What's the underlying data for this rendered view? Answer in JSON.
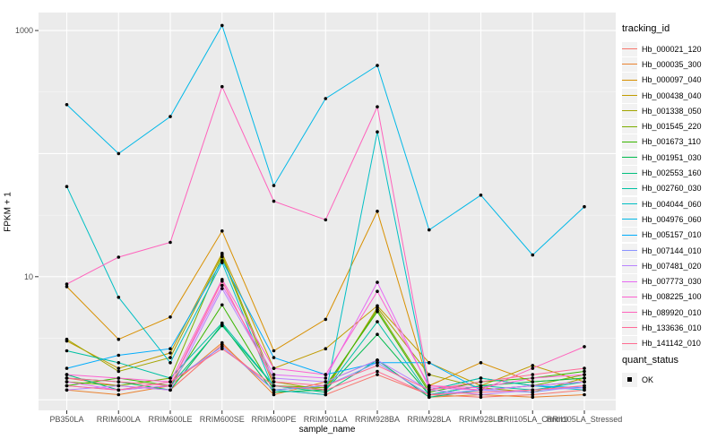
{
  "figure": {
    "background": "#FFFFFF",
    "panel_background": "#EBEBEB",
    "grid_color": "#FFFFFF",
    "tick_color": "#333333",
    "tick_label_color": "#4D4D4D",
    "point_color": "#000000"
  },
  "chart_data": {
    "type": "line",
    "title": "",
    "xlabel": "sample_name",
    "ylabel": "FPKM + 1",
    "y_scale": "log10",
    "ylim": [
      0.82,
      1400
    ],
    "grid": true,
    "legend_position": "right",
    "y_ticks": [
      {
        "label": "1000",
        "value": 1000
      },
      {
        "label": "10",
        "value": 10
      }
    ],
    "y_minor_breaks": [
      3.162,
      31.62,
      316.2
    ],
    "categories": [
      "PB350LA",
      "RRIM600LA",
      "RRIM600LE",
      "RRIM600SE",
      "RRIM600PE",
      "RRIM901LA",
      "RRIM928BA",
      "RRIM928LA",
      "RRIM928LB",
      "RRII105LA_Control",
      "RRII105LA_Stressed"
    ],
    "series": [
      {
        "tracking_id": "Hb_000021_120",
        "color": "#F8766D",
        "values": [
          1.5,
          1.3,
          1.2,
          2.8,
          1.2,
          1.1,
          1.6,
          1.1,
          1.05,
          1.1,
          1.2
        ]
      },
      {
        "tracking_id": "Hb_000035_300",
        "color": "#EA8331",
        "values": [
          1.2,
          1.1,
          1.3,
          2.9,
          1.1,
          1.4,
          2.1,
          1.05,
          1.1,
          1.05,
          1.1
        ]
      },
      {
        "tracking_id": "Hb_000097_040",
        "color": "#D89000",
        "values": [
          8.3,
          3.1,
          4.7,
          23.5,
          2.5,
          4.5,
          34,
          1.3,
          2.0,
          1.4,
          1.5
        ]
      },
      {
        "tracking_id": "Hb_000438_040",
        "color": "#C09B00",
        "values": [
          3.0,
          1.8,
          2.4,
          15.5,
          1.8,
          2.6,
          5.8,
          2.0,
          1.3,
          1.9,
          1.4
        ]
      },
      {
        "tracking_id": "Hb_001338_050",
        "color": "#A3A500",
        "values": [
          3.1,
          1.7,
          2.2,
          15.0,
          1.4,
          1.2,
          5.6,
          1.6,
          1.25,
          1.15,
          1.5
        ]
      },
      {
        "tracking_id": "Hb_001545_220",
        "color": "#7CAE00",
        "values": [
          1.4,
          1.3,
          1.5,
          14.5,
          1.3,
          1.25,
          5.4,
          1.2,
          1.5,
          1.3,
          1.6
        ]
      },
      {
        "tracking_id": "Hb_001673_110",
        "color": "#39B600",
        "values": [
          1.3,
          1.5,
          1.3,
          5.9,
          1.2,
          1.3,
          5.2,
          1.15,
          1.4,
          1.5,
          1.7
        ]
      },
      {
        "tracking_id": "Hb_001951_030",
        "color": "#00BB4E",
        "values": [
          1.5,
          1.4,
          1.2,
          4.1,
          1.15,
          1.2,
          3.4,
          1.1,
          1.3,
          1.4,
          1.5
        ]
      },
      {
        "tracking_id": "Hb_002553_160",
        "color": "#00BF7D",
        "values": [
          1.6,
          1.2,
          1.3,
          4.0,
          1.3,
          1.15,
          2.1,
          1.05,
          1.2,
          1.3,
          1.4
        ]
      },
      {
        "tracking_id": "Hb_002760_030",
        "color": "#00C1A3",
        "values": [
          2.5,
          2.0,
          1.5,
          4.2,
          1.3,
          1.2,
          4.3,
          1.1,
          1.3,
          1.2,
          1.4
        ]
      },
      {
        "tracking_id": "Hb_004044_060",
        "color": "#00BFC4",
        "values": [
          54,
          6.8,
          2.0,
          13,
          1.2,
          1.1,
          150,
          1.2,
          1.5,
          1.3,
          1.2
        ]
      },
      {
        "tracking_id": "Hb_004976_060",
        "color": "#00B8E7",
        "values": [
          250,
          100,
          200,
          1100,
          55,
          280,
          520,
          24,
          46,
          15,
          37
        ]
      },
      {
        "tracking_id": "Hb_005157_010",
        "color": "#00ACFC",
        "values": [
          1.8,
          2.3,
          2.6,
          13.5,
          2.2,
          1.6,
          2.0,
          2.0,
          1.2,
          1.3,
          1.25
        ]
      },
      {
        "tracking_id": "Hb_007144_010",
        "color": "#8B93FF",
        "values": [
          1.3,
          1.2,
          1.4,
          2.7,
          1.2,
          1.3,
          2.0,
          1.1,
          1.2,
          1.15,
          1.3
        ]
      },
      {
        "tracking_id": "Hb_007481_020",
        "color": "#B983FF",
        "values": [
          1.2,
          1.3,
          1.2,
          8.0,
          1.5,
          1.4,
          2.1,
          1.2,
          1.1,
          1.2,
          1.25
        ]
      },
      {
        "tracking_id": "Hb_007773_030",
        "color": "#E76BF3",
        "values": [
          1.4,
          1.2,
          1.3,
          8.5,
          1.6,
          1.5,
          9.0,
          1.25,
          1.2,
          1.3,
          1.4
        ]
      },
      {
        "tracking_id": "Hb_008225_100",
        "color": "#FD61D1",
        "values": [
          1.6,
          1.5,
          1.4,
          9.5,
          1.8,
          1.6,
          7.6,
          1.3,
          1.25,
          1.5,
          1.6
        ]
      },
      {
        "tracking_id": "Hb_089920_010",
        "color": "#FF62BC",
        "values": [
          8.7,
          14.4,
          19,
          350,
          41,
          29,
          240,
          1.3,
          1.2,
          1.8,
          2.7
        ]
      },
      {
        "tracking_id": "Hb_133636_010",
        "color": "#FF6A98",
        "values": [
          1.5,
          1.4,
          1.3,
          9.2,
          1.4,
          1.3,
          1.9,
          1.2,
          1.4,
          1.6,
          1.8
        ]
      },
      {
        "tracking_id": "Hb_141142_010",
        "color": "#FF6C91",
        "values": [
          1.3,
          1.2,
          1.4,
          2.6,
          1.3,
          1.2,
          1.7,
          1.1,
          1.15,
          1.2,
          1.3
        ]
      }
    ],
    "legend": {
      "title": "tracking_id"
    },
    "quant_legend": {
      "title": "quant_status",
      "entries": [
        {
          "label": "OK",
          "shape": "square",
          "color": "#000000"
        }
      ]
    }
  }
}
